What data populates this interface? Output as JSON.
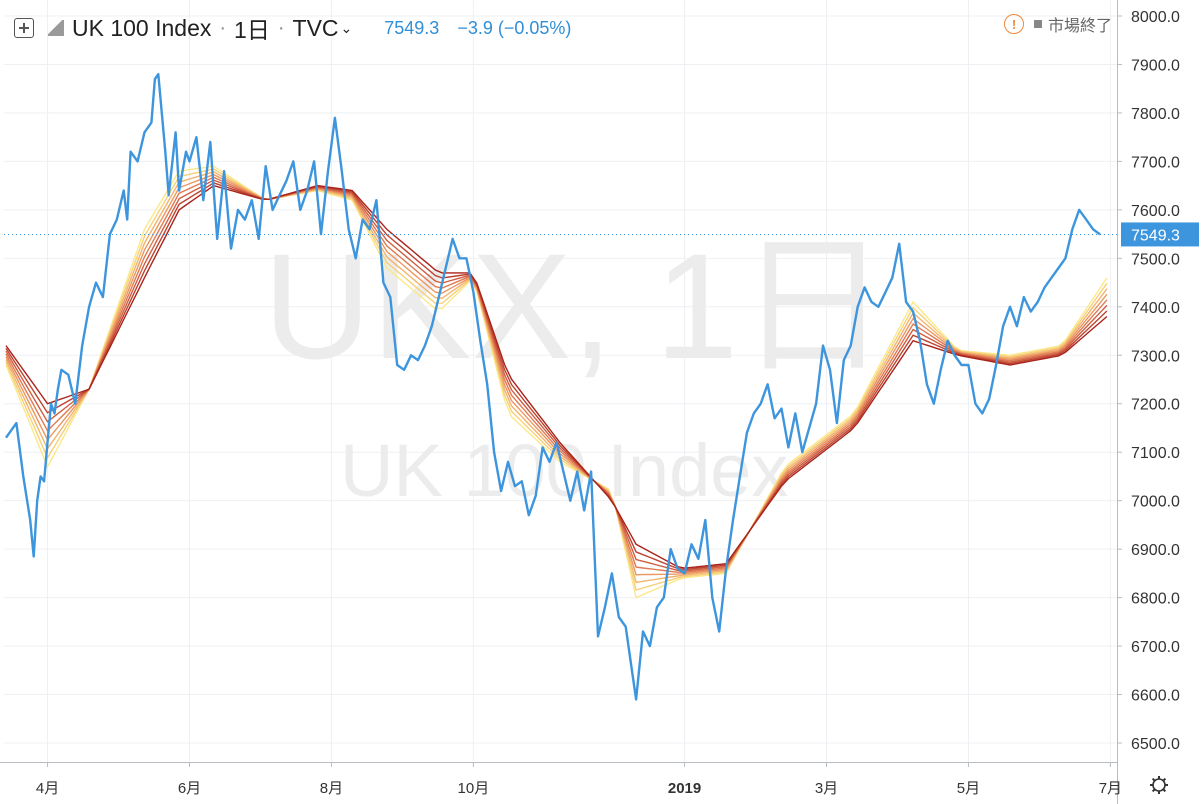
{
  "header": {
    "title": "UK 100 Index",
    "interval": "1日",
    "exchange": "TVC",
    "last_price": "7549.3",
    "change": "−3.9 (−0.05%)"
  },
  "status": {
    "market_text": "市場終了",
    "warning_icon": "warning-circle-icon",
    "market_icon": "square-icon"
  },
  "watermark": {
    "symbol_line": "UKX, 1日",
    "name_line": "UK 100 Index"
  },
  "price_tag": "7549.3",
  "colors": {
    "price_line": "#3d95dd",
    "ribbon_fast": "#fbe88a",
    "ribbon_slow": "#a9241a",
    "accent": "#2f8fd8",
    "warning": "#ef8a3e"
  },
  "settings_icon": "gear-icon",
  "chart_data": {
    "type": "line",
    "title": "UK 100 Index",
    "y_axis": {
      "ticks": [
        "8000.0",
        "7900.0",
        "7800.0",
        "7700.0",
        "7600.0",
        "7500.0",
        "7400.0",
        "7300.0",
        "7200.0",
        "7100.0",
        "7000.0",
        "6900.0",
        "6800.0",
        "6700.0",
        "6600.0",
        "6500.0"
      ],
      "range": [
        6455,
        8030
      ],
      "position": "right"
    },
    "x_axis": {
      "ticks": [
        "4月",
        "6月",
        "8月",
        "10月",
        "2019",
        "3月",
        "5月",
        "7月"
      ],
      "tick_index": [
        12,
        53,
        94,
        135,
        196,
        237,
        278,
        319
      ],
      "range": [
        0,
        326
      ]
    },
    "grid": true,
    "last_value_line": 7549.3,
    "series": [
      {
        "type": "line",
        "keypoints": [
          [
            0,
            7130
          ],
          [
            3,
            7160
          ],
          [
            5,
            7050
          ],
          [
            7,
            6960
          ],
          [
            8,
            6885
          ],
          [
            9,
            7000
          ],
          [
            10,
            7050
          ],
          [
            11,
            7040
          ],
          [
            12,
            7120
          ],
          [
            13,
            7200
          ],
          [
            14,
            7180
          ],
          [
            15,
            7230
          ],
          [
            16,
            7270
          ],
          [
            18,
            7260
          ],
          [
            20,
            7200
          ],
          [
            22,
            7320
          ],
          [
            24,
            7400
          ],
          [
            26,
            7450
          ],
          [
            28,
            7420
          ],
          [
            30,
            7550
          ],
          [
            32,
            7580
          ],
          [
            34,
            7640
          ],
          [
            35,
            7580
          ],
          [
            36,
            7720
          ],
          [
            38,
            7700
          ],
          [
            40,
            7760
          ],
          [
            42,
            7780
          ],
          [
            43,
            7870
          ],
          [
            44,
            7880
          ],
          [
            46,
            7720
          ],
          [
            47,
            7630
          ],
          [
            49,
            7760
          ],
          [
            50,
            7640
          ],
          [
            52,
            7720
          ],
          [
            53,
            7700
          ],
          [
            55,
            7750
          ],
          [
            57,
            7620
          ],
          [
            59,
            7740
          ],
          [
            61,
            7540
          ],
          [
            63,
            7680
          ],
          [
            65,
            7520
          ],
          [
            67,
            7600
          ],
          [
            69,
            7580
          ],
          [
            71,
            7620
          ],
          [
            73,
            7540
          ],
          [
            75,
            7690
          ],
          [
            77,
            7600
          ],
          [
            79,
            7630
          ],
          [
            81,
            7660
          ],
          [
            83,
            7700
          ],
          [
            85,
            7600
          ],
          [
            87,
            7640
          ],
          [
            89,
            7700
          ],
          [
            91,
            7550
          ],
          [
            93,
            7680
          ],
          [
            95,
            7790
          ],
          [
            97,
            7680
          ],
          [
            99,
            7560
          ],
          [
            101,
            7500
          ],
          [
            103,
            7580
          ],
          [
            105,
            7560
          ],
          [
            107,
            7620
          ],
          [
            109,
            7450
          ],
          [
            111,
            7420
          ],
          [
            113,
            7280
          ],
          [
            115,
            7270
          ],
          [
            117,
            7300
          ],
          [
            119,
            7290
          ],
          [
            121,
            7320
          ],
          [
            123,
            7360
          ],
          [
            125,
            7420
          ],
          [
            127,
            7480
          ],
          [
            129,
            7540
          ],
          [
            131,
            7500
          ],
          [
            133,
            7500
          ],
          [
            135,
            7430
          ],
          [
            137,
            7330
          ],
          [
            139,
            7240
          ],
          [
            141,
            7100
          ],
          [
            143,
            7020
          ],
          [
            145,
            7080
          ],
          [
            147,
            7030
          ],
          [
            149,
            7040
          ],
          [
            151,
            6970
          ],
          [
            153,
            7010
          ],
          [
            155,
            7110
          ],
          [
            157,
            7080
          ],
          [
            159,
            7120
          ],
          [
            161,
            7060
          ],
          [
            163,
            7000
          ],
          [
            165,
            7060
          ],
          [
            167,
            6980
          ],
          [
            169,
            7060
          ],
          [
            171,
            6720
          ],
          [
            173,
            6780
          ],
          [
            175,
            6850
          ],
          [
            177,
            6760
          ],
          [
            179,
            6740
          ],
          [
            181,
            6640
          ],
          [
            182,
            6590
          ],
          [
            184,
            6730
          ],
          [
            186,
            6700
          ],
          [
            188,
            6780
          ],
          [
            190,
            6800
          ],
          [
            192,
            6900
          ],
          [
            194,
            6860
          ],
          [
            196,
            6850
          ],
          [
            198,
            6910
          ],
          [
            200,
            6880
          ],
          [
            202,
            6960
          ],
          [
            204,
            6800
          ],
          [
            206,
            6730
          ],
          [
            208,
            6860
          ],
          [
            210,
            6960
          ],
          [
            212,
            7050
          ],
          [
            214,
            7140
          ],
          [
            216,
            7180
          ],
          [
            218,
            7200
          ],
          [
            220,
            7240
          ],
          [
            222,
            7170
          ],
          [
            224,
            7190
          ],
          [
            226,
            7110
          ],
          [
            228,
            7180
          ],
          [
            230,
            7100
          ],
          [
            232,
            7150
          ],
          [
            234,
            7200
          ],
          [
            236,
            7320
          ],
          [
            238,
            7270
          ],
          [
            240,
            7160
          ],
          [
            242,
            7290
          ],
          [
            244,
            7320
          ],
          [
            246,
            7400
          ],
          [
            248,
            7440
          ],
          [
            250,
            7410
          ],
          [
            252,
            7400
          ],
          [
            254,
            7430
          ],
          [
            256,
            7460
          ],
          [
            258,
            7530
          ],
          [
            260,
            7410
          ],
          [
            262,
            7390
          ],
          [
            264,
            7330
          ],
          [
            266,
            7240
          ],
          [
            268,
            7200
          ],
          [
            270,
            7270
          ],
          [
            272,
            7330
          ],
          [
            274,
            7300
          ],
          [
            276,
            7280
          ],
          [
            278,
            7280
          ],
          [
            280,
            7200
          ],
          [
            282,
            7180
          ],
          [
            284,
            7210
          ],
          [
            286,
            7280
          ],
          [
            288,
            7360
          ],
          [
            290,
            7400
          ],
          [
            292,
            7360
          ],
          [
            294,
            7420
          ],
          [
            296,
            7390
          ],
          [
            298,
            7410
          ],
          [
            300,
            7440
          ],
          [
            302,
            7460
          ],
          [
            304,
            7480
          ],
          [
            306,
            7500
          ],
          [
            308,
            7560
          ],
          [
            310,
            7600
          ],
          [
            312,
            7580
          ],
          [
            314,
            7560
          ],
          [
            316,
            7549.3
          ]
        ],
        "name": ""
      }
    ],
    "ribbon": {
      "type": "moving-average-ribbon",
      "count": 8,
      "order": "fast-yellow-to-slow-darkred",
      "keypoints": [
        [
          [
            0,
            7280
          ],
          [
            12,
            7070
          ],
          [
            24,
            7230
          ],
          [
            40,
            7560
          ],
          [
            50,
            7680
          ],
          [
            60,
            7690
          ],
          [
            75,
            7620
          ],
          [
            90,
            7640
          ],
          [
            100,
            7620
          ],
          [
            110,
            7480
          ],
          [
            125,
            7390
          ],
          [
            135,
            7460
          ],
          [
            145,
            7180
          ],
          [
            160,
            7080
          ],
          [
            175,
            7020
          ],
          [
            182,
            6800
          ],
          [
            195,
            6840
          ],
          [
            208,
            6850
          ],
          [
            225,
            7070
          ],
          [
            245,
            7180
          ],
          [
            262,
            7410
          ],
          [
            275,
            7310
          ],
          [
            290,
            7300
          ],
          [
            305,
            7320
          ],
          [
            318,
            7460
          ]
        ],
        [
          [
            0,
            7320
          ],
          [
            12,
            7200
          ],
          [
            24,
            7230
          ],
          [
            40,
            7460
          ],
          [
            50,
            7600
          ],
          [
            60,
            7650
          ],
          [
            75,
            7620
          ],
          [
            90,
            7650
          ],
          [
            100,
            7640
          ],
          [
            110,
            7560
          ],
          [
            125,
            7470
          ],
          [
            135,
            7470
          ],
          [
            145,
            7260
          ],
          [
            160,
            7120
          ],
          [
            175,
            7000
          ],
          [
            182,
            6910
          ],
          [
            195,
            6860
          ],
          [
            208,
            6870
          ],
          [
            225,
            7040
          ],
          [
            245,
            7150
          ],
          [
            262,
            7330
          ],
          [
            275,
            7300
          ],
          [
            290,
            7280
          ],
          [
            305,
            7300
          ],
          [
            318,
            7380
          ]
        ]
      ]
    }
  }
}
